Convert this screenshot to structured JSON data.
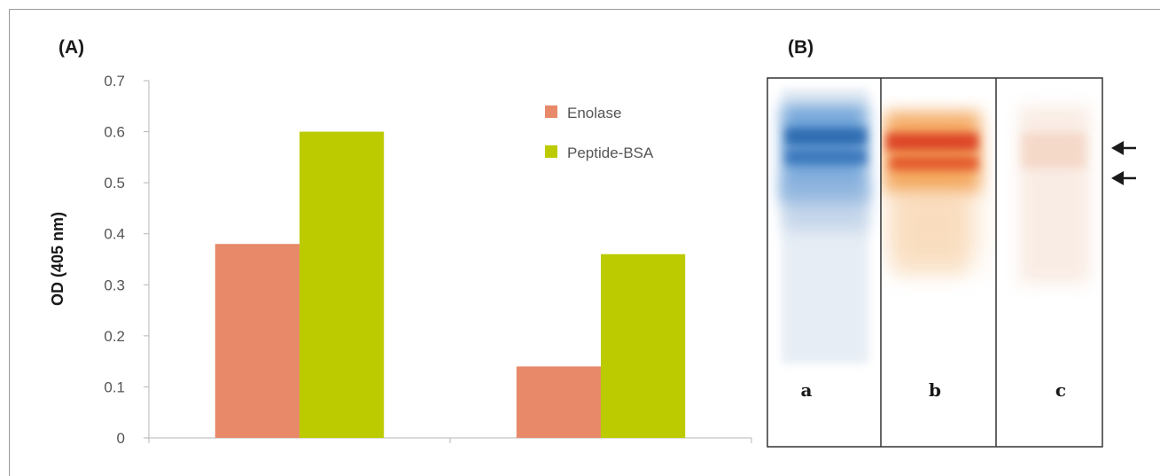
{
  "panel_labels": {
    "a": "(A)",
    "b": "(B)"
  },
  "chart_data": {
    "type": "bar",
    "categories": [
      "",
      ""
    ],
    "series": [
      {
        "name": "Enolase",
        "values": [
          0.38,
          0.14
        ],
        "color": "#e8896a"
      },
      {
        "name": "Peptide-BSA",
        "values": [
          0.6,
          0.36
        ],
        "color": "#bccb00"
      }
    ],
    "ylabel": "OD (405 nm)",
    "xlabel": "",
    "ylim": [
      0,
      0.7
    ],
    "yticks": [
      "0",
      "0.1",
      "0.2",
      "0.3",
      "0.4",
      "0.5",
      "0.6",
      "0.7"
    ],
    "grid": false,
    "legend_position": "top-right"
  },
  "blot": {
    "lanes": [
      {
        "label": "a",
        "stain": "blue"
      },
      {
        "label": "b",
        "stain": "orange-red"
      },
      {
        "label": "c",
        "stain": "faint"
      }
    ],
    "arrows": [
      {
        "icon": "left-arrow-icon"
      },
      {
        "icon": "left-arrow-icon"
      }
    ]
  }
}
